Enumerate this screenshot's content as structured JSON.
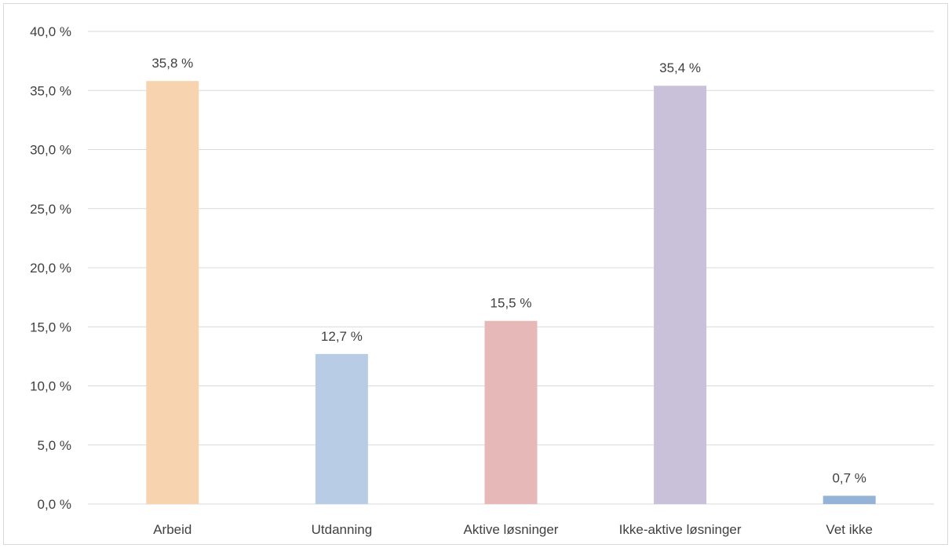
{
  "chart_data": {
    "type": "bar",
    "title": "",
    "xlabel": "",
    "ylabel": "",
    "categories": [
      "Arbeid",
      "Utdanning",
      "Aktive løsninger",
      "Ikke-aktive løsninger",
      "Vet ikke"
    ],
    "values": [
      35.8,
      12.7,
      15.5,
      35.4,
      0.7
    ],
    "data_labels": [
      "35,8 %",
      "12,7 %",
      "15,5 %",
      "35,4 %",
      "0,7 %"
    ],
    "colors": [
      "#f8d3b0",
      "#b9cce6",
      "#e6b8b7",
      "#c9c0da",
      "#95b3d7"
    ],
    "ylim": [
      0,
      40
    ],
    "yticks": [
      0,
      5,
      10,
      15,
      20,
      25,
      30,
      35,
      40
    ],
    "ytick_labels": [
      "0,0 %",
      "5,0 %",
      "10,0 %",
      "15,0 %",
      "20,0 %",
      "25,0 %",
      "30,0 %",
      "35,0 %",
      "40,0 %"
    ],
    "grid": true,
    "legend": "none"
  }
}
